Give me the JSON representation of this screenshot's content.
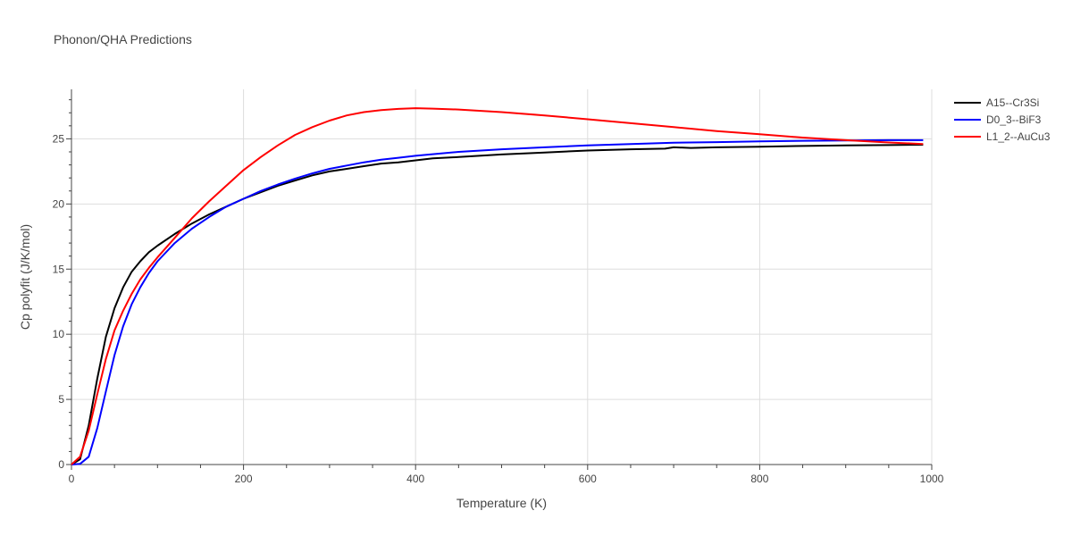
{
  "chart_data": {
    "type": "line",
    "title": "Phonon/QHA Predictions",
    "xlabel": "Temperature (K)",
    "ylabel": "Cp polyfit (J/K/mol)",
    "xlim": [
      0,
      1000
    ],
    "ylim": [
      0,
      28.8
    ],
    "x_ticks": [
      0,
      200,
      400,
      600,
      800,
      1000
    ],
    "y_ticks": [
      0,
      5,
      10,
      15,
      20,
      25
    ],
    "grid": true,
    "legend_position": "top-right",
    "series": [
      {
        "name": "A15--Cr3Si",
        "color": "#000000",
        "points": [
          [
            0,
            0
          ],
          [
            10,
            0.4
          ],
          [
            20,
            3.0
          ],
          [
            30,
            6.6
          ],
          [
            40,
            9.8
          ],
          [
            50,
            12.0
          ],
          [
            60,
            13.6
          ],
          [
            70,
            14.8
          ],
          [
            80,
            15.6
          ],
          [
            90,
            16.3
          ],
          [
            100,
            16.8
          ],
          [
            120,
            17.7
          ],
          [
            140,
            18.5
          ],
          [
            160,
            19.2
          ],
          [
            180,
            19.8
          ],
          [
            200,
            20.4
          ],
          [
            220,
            20.9
          ],
          [
            240,
            21.4
          ],
          [
            260,
            21.8
          ],
          [
            280,
            22.2
          ],
          [
            300,
            22.5
          ],
          [
            320,
            22.7
          ],
          [
            340,
            22.9
          ],
          [
            360,
            23.1
          ],
          [
            380,
            23.2
          ],
          [
            400,
            23.35
          ],
          [
            420,
            23.5
          ],
          [
            450,
            23.6
          ],
          [
            500,
            23.8
          ],
          [
            550,
            23.95
          ],
          [
            600,
            24.1
          ],
          [
            650,
            24.2
          ],
          [
            690,
            24.25
          ],
          [
            700,
            24.35
          ],
          [
            720,
            24.3
          ],
          [
            750,
            24.35
          ],
          [
            800,
            24.4
          ],
          [
            850,
            24.45
          ],
          [
            900,
            24.5
          ],
          [
            950,
            24.52
          ],
          [
            990,
            24.55
          ]
        ]
      },
      {
        "name": "D0_3--BiF3",
        "color": "#0000ff",
        "points": [
          [
            0,
            0
          ],
          [
            10,
            0.05
          ],
          [
            20,
            0.6
          ],
          [
            30,
            2.8
          ],
          [
            40,
            5.6
          ],
          [
            50,
            8.4
          ],
          [
            60,
            10.6
          ],
          [
            70,
            12.3
          ],
          [
            80,
            13.6
          ],
          [
            90,
            14.7
          ],
          [
            100,
            15.6
          ],
          [
            120,
            17.0
          ],
          [
            140,
            18.1
          ],
          [
            160,
            19.0
          ],
          [
            180,
            19.8
          ],
          [
            200,
            20.4
          ],
          [
            220,
            21.0
          ],
          [
            240,
            21.5
          ],
          [
            260,
            21.95
          ],
          [
            280,
            22.35
          ],
          [
            300,
            22.7
          ],
          [
            320,
            22.95
          ],
          [
            340,
            23.2
          ],
          [
            360,
            23.4
          ],
          [
            380,
            23.55
          ],
          [
            400,
            23.7
          ],
          [
            450,
            24.0
          ],
          [
            500,
            24.2
          ],
          [
            550,
            24.35
          ],
          [
            600,
            24.5
          ],
          [
            650,
            24.6
          ],
          [
            700,
            24.7
          ],
          [
            750,
            24.75
          ],
          [
            800,
            24.8
          ],
          [
            850,
            24.85
          ],
          [
            900,
            24.88
          ],
          [
            950,
            24.9
          ],
          [
            990,
            24.9
          ]
        ]
      },
      {
        "name": "L1_2--AuCu3",
        "color": "#ff0000",
        "points": [
          [
            0,
            0
          ],
          [
            10,
            0.6
          ],
          [
            20,
            2.6
          ],
          [
            30,
            5.4
          ],
          [
            40,
            8.1
          ],
          [
            50,
            10.3
          ],
          [
            60,
            11.8
          ],
          [
            70,
            13.1
          ],
          [
            80,
            14.2
          ],
          [
            90,
            15.1
          ],
          [
            100,
            15.9
          ],
          [
            120,
            17.4
          ],
          [
            140,
            18.9
          ],
          [
            160,
            20.2
          ],
          [
            180,
            21.4
          ],
          [
            200,
            22.6
          ],
          [
            220,
            23.6
          ],
          [
            240,
            24.5
          ],
          [
            260,
            25.3
          ],
          [
            280,
            25.9
          ],
          [
            300,
            26.4
          ],
          [
            320,
            26.8
          ],
          [
            340,
            27.05
          ],
          [
            360,
            27.2
          ],
          [
            380,
            27.3
          ],
          [
            400,
            27.35
          ],
          [
            420,
            27.32
          ],
          [
            450,
            27.25
          ],
          [
            500,
            27.05
          ],
          [
            550,
            26.8
          ],
          [
            600,
            26.5
          ],
          [
            650,
            26.2
          ],
          [
            700,
            25.9
          ],
          [
            750,
            25.6
          ],
          [
            800,
            25.35
          ],
          [
            850,
            25.1
          ],
          [
            900,
            24.9
          ],
          [
            950,
            24.72
          ],
          [
            990,
            24.6
          ]
        ]
      }
    ]
  }
}
